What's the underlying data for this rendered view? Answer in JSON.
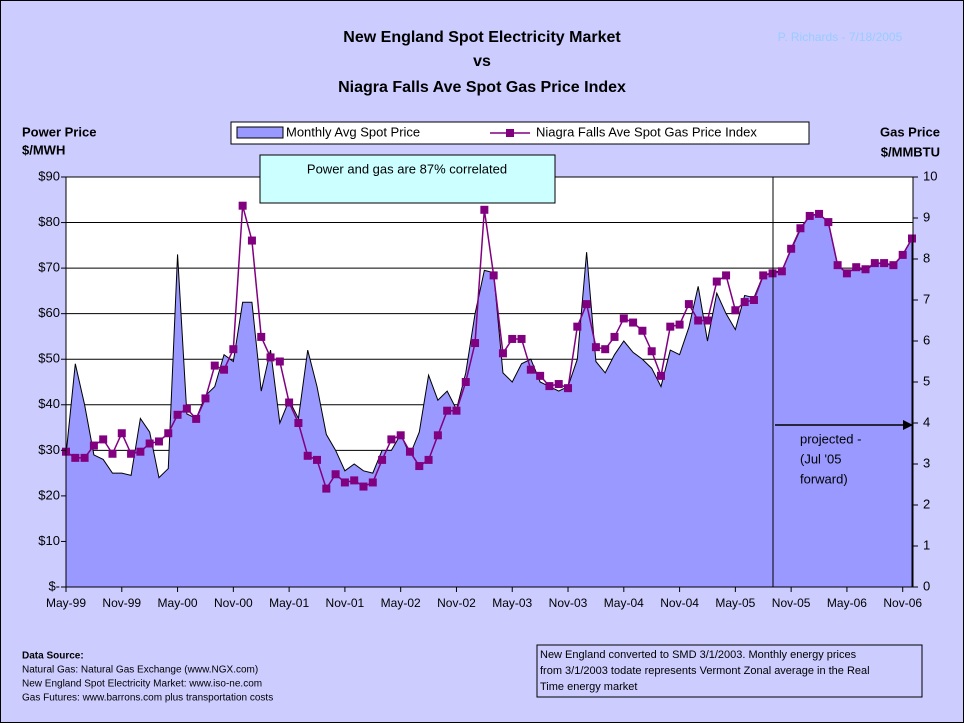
{
  "chart_data": {
    "type": "area_line",
    "title": [
      "New England Spot Electricity Market",
      "vs",
      "Niagra Falls Ave Spot Gas Price Index"
    ],
    "author_note": "P. Richards  - 7/18/2005",
    "y_label": [
      "Power Price",
      "$/MWH"
    ],
    "y2_label": [
      "Gas Price",
      "$/MMBTU"
    ],
    "annotation": "Power and gas are 87% correlated",
    "projection_label": [
      "projected -",
      "(Jul '05",
      "forward)"
    ],
    "categories": [
      "May-99",
      null,
      null,
      null,
      null,
      null,
      "Nov-99",
      null,
      null,
      null,
      null,
      null,
      "May-00",
      null,
      null,
      null,
      null,
      null,
      "Nov-00",
      null,
      null,
      null,
      null,
      null,
      "May-01",
      null,
      null,
      null,
      null,
      null,
      "Nov-01",
      null,
      null,
      null,
      null,
      null,
      "May-02",
      null,
      null,
      null,
      null,
      null,
      "Nov-02",
      null,
      null,
      null,
      null,
      null,
      "May-03",
      null,
      null,
      null,
      null,
      null,
      "Nov-03",
      null,
      null,
      null,
      null,
      null,
      "May-04",
      null,
      null,
      null,
      null,
      null,
      "Nov-04",
      null,
      null,
      null,
      null,
      null,
      "May-05",
      null,
      null,
      null,
      null,
      null,
      "Nov-05",
      null,
      null,
      null,
      null,
      null,
      "May-06",
      null,
      null,
      null,
      null,
      null,
      "Nov-06",
      null
    ],
    "series": [
      {
        "name": "Monthly Avg Spot Price",
        "type": "area",
        "color": "#9999ff",
        "axis": "y",
        "values": [
          29,
          49,
          40,
          29,
          28,
          25,
          25,
          24.5,
          37,
          34,
          24,
          26,
          73,
          38,
          37,
          42,
          44,
          51,
          49.5,
          62.5,
          62.5,
          43,
          52,
          36,
          41,
          37,
          52,
          44,
          33.5,
          30,
          25.5,
          27,
          25.5,
          25,
          30,
          30,
          33.5,
          29,
          34,
          46.5,
          41,
          43,
          39,
          47,
          60,
          69.5,
          69,
          47,
          45,
          49,
          50,
          45,
          44,
          43,
          44,
          50,
          73.5,
          49.5,
          47,
          51,
          54,
          51.5,
          50,
          48,
          44,
          52,
          51,
          57,
          66,
          54,
          64.5,
          60,
          56.5,
          64,
          63.5,
          68.5,
          69,
          69.5,
          74,
          78.5,
          81.5,
          82,
          80,
          70.5,
          69,
          70,
          69.5,
          71,
          71,
          70.5,
          73,
          76.5
        ]
      },
      {
        "name": "Niagra Falls Ave Spot Gas Price Index",
        "type": "line",
        "color": "#800080",
        "axis": "y2",
        "values": [
          3.3,
          3.15,
          3.15,
          3.45,
          3.6,
          3.25,
          3.75,
          3.25,
          3.3,
          3.5,
          3.55,
          3.75,
          4.2,
          4.35,
          4.1,
          4.6,
          5.4,
          5.3,
          5.8,
          9.3,
          8.45,
          6.1,
          5.6,
          5.5,
          4.5,
          4.0,
          3.2,
          3.1,
          2.4,
          2.75,
          2.55,
          2.6,
          2.45,
          2.55,
          3.1,
          3.6,
          3.7,
          3.3,
          2.95,
          3.1,
          3.7,
          4.3,
          4.3,
          5.0,
          5.95,
          9.2,
          7.6,
          5.7,
          6.05,
          6.05,
          5.3,
          5.15,
          4.9,
          4.95,
          4.85,
          6.35,
          6.9,
          5.85,
          5.8,
          6.1,
          6.55,
          6.45,
          6.25,
          5.75,
          5.15,
          6.35,
          6.4,
          6.9,
          6.5,
          6.5,
          7.45,
          7.6,
          6.75,
          6.95,
          7.0,
          7.6,
          7.65,
          7.7,
          8.25,
          8.75,
          9.05,
          9.1,
          8.9,
          7.85,
          7.65,
          7.8,
          7.75,
          7.9,
          7.9,
          7.85,
          8.1,
          8.5
        ]
      }
    ],
    "ylim": [
      0,
      90
    ],
    "yticks": [
      {
        "value": 0,
        "label": "$-"
      },
      {
        "value": 10,
        "label": "$10"
      },
      {
        "value": 20,
        "label": "$20"
      },
      {
        "value": 30,
        "label": "$30"
      },
      {
        "value": 40,
        "label": "$40"
      },
      {
        "value": 50,
        "label": "$50"
      },
      {
        "value": 60,
        "label": "$60"
      },
      {
        "value": 70,
        "label": "$70"
      },
      {
        "value": 80,
        "label": "$80"
      },
      {
        "value": 90,
        "label": "$90"
      }
    ],
    "y2lim": [
      0,
      10
    ],
    "y2ticks": [
      0,
      1,
      2,
      3,
      4,
      5,
      6,
      7,
      8,
      9,
      10
    ],
    "grid": true,
    "legend": "top",
    "source_title": "Data Source:",
    "source_lines": [
      "Natural Gas: Natural Gas Exchange (www.NGX.com)",
      "New England Spot Electricity Market:  www.iso-ne.com",
      "Gas Futures:  www.barrons.com plus transportation costs"
    ],
    "note_lines": [
      "New England converted to SMD 3/1/2003.  Monthly energy prices",
      "from 3/1/2003 todate represents Vermont Zonal average in the Real",
      "Time energy market"
    ]
  }
}
